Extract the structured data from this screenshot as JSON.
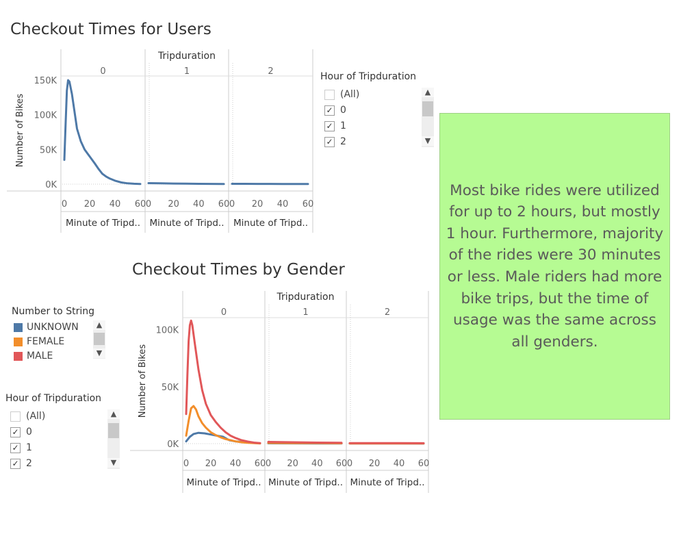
{
  "top_chart": {
    "title": "Checkout Times for Users",
    "column_header": "Tripduration",
    "panels": [
      "0",
      "1",
      "2"
    ],
    "ylabel": "Number of Bikes",
    "yticks": [
      "150K",
      "100K",
      "50K",
      "0K"
    ],
    "xticks": [
      "0",
      "20",
      "40",
      "60"
    ],
    "xlabel": "Minute of Tripd.."
  },
  "top_filter": {
    "title": "Hour of Tripduration",
    "items": [
      {
        "label": "(All)",
        "checked": false
      },
      {
        "label": "0",
        "checked": true
      },
      {
        "label": "1",
        "checked": true
      },
      {
        "label": "2",
        "checked": true
      }
    ]
  },
  "bottom_chart": {
    "title": "Checkout Times by Gender",
    "column_header": "Tripduration",
    "panels": [
      "0",
      "1",
      "2"
    ],
    "ylabel": "Number of Bikes",
    "yticks": [
      "100K",
      "50K",
      "0K"
    ],
    "xticks": [
      "0",
      "20",
      "40",
      "60"
    ],
    "xlabel": "Minute of Tripd.."
  },
  "gender_legend": {
    "title": "Number to String",
    "items": [
      {
        "label": "UNKNOWN",
        "color": "#4e79a7"
      },
      {
        "label": "FEMALE",
        "color": "#f28e2b"
      },
      {
        "label": "MALE",
        "color": "#e15759"
      }
    ]
  },
  "bottom_filter": {
    "title": "Hour of Tripduration",
    "items": [
      {
        "label": "(All)",
        "checked": false
      },
      {
        "label": "0",
        "checked": true
      },
      {
        "label": "1",
        "checked": true
      },
      {
        "label": "2",
        "checked": true
      }
    ]
  },
  "annotation": {
    "text": "Most bike rides were utilized for up to 2 hours, but mostly 1 hour. Furthermore, majority of the rides were 30 minutes or less. Male riders had more bike trips, but the time of usage was the same across all genders."
  },
  "chart_data": [
    {
      "type": "line",
      "title": "Checkout Times for Users",
      "facet": "Tripduration",
      "xlabel": "Minute of Tripd..",
      "ylabel": "Number of Bikes",
      "xlim": [
        0,
        60
      ],
      "ylim": [
        0,
        155000
      ],
      "grid": false,
      "panels": [
        {
          "name": "0",
          "series": [
            {
              "color": "#4e79a7",
              "x": [
                0,
                1,
                2,
                3,
                4,
                6,
                8,
                10,
                13,
                16,
                20,
                24,
                27,
                30,
                33,
                36,
                40,
                45,
                50,
                55,
                60
              ],
              "y": [
                35000,
                85000,
                135000,
                150000,
                148000,
                130000,
                105000,
                80000,
                62000,
                50000,
                40000,
                30000,
                22000,
                15000,
                11000,
                8000,
                5000,
                2500,
                1200,
                600,
                300
              ]
            }
          ]
        },
        {
          "name": "1",
          "series": [
            {
              "color": "#4e79a7",
              "x": [
                0,
                10,
                20,
                30,
                40,
                50,
                60
              ],
              "y": [
                1500,
                1200,
                900,
                700,
                500,
                400,
                300
              ]
            }
          ]
        },
        {
          "name": "2",
          "series": [
            {
              "color": "#4e79a7",
              "x": [
                0,
                10,
                20,
                30,
                40,
                50,
                60
              ],
              "y": [
                500,
                450,
                400,
                350,
                300,
                250,
                200
              ]
            }
          ]
        }
      ]
    },
    {
      "type": "line",
      "title": "Checkout Times by Gender",
      "facet": "Tripduration",
      "xlabel": "Minute of Tripd..",
      "ylabel": "Number of Bikes",
      "xlim": [
        0,
        60
      ],
      "ylim": [
        0,
        110000
      ],
      "grid": false,
      "legend": "left",
      "panels": [
        {
          "name": "0",
          "series": [
            {
              "name": "UNKNOWN",
              "color": "#4e79a7",
              "x": [
                0,
                3,
                6,
                10,
                15,
                20,
                25,
                30,
                35,
                40,
                45,
                50,
                55,
                60
              ],
              "y": [
                2000,
                6000,
                8500,
                9500,
                9000,
                8000,
                7000,
                6000,
                3000,
                2000,
                1500,
                1000,
                600,
                300
              ]
            },
            {
              "name": "FEMALE",
              "color": "#f28e2b",
              "x": [
                0,
                2,
                4,
                6,
                8,
                10,
                13,
                16,
                20,
                24,
                28,
                32,
                36,
                40,
                45,
                50,
                55,
                60
              ],
              "y": [
                7000,
                20000,
                31000,
                33000,
                30000,
                24000,
                18000,
                14000,
                10000,
                7500,
                5500,
                4000,
                3000,
                2000,
                1200,
                700,
                400,
                200
              ]
            },
            {
              "name": "MALE",
              "color": "#e15759",
              "x": [
                0,
                1,
                2,
                3,
                4,
                5,
                7,
                10,
                13,
                16,
                20,
                24,
                28,
                32,
                36,
                40,
                45,
                50,
                55,
                60
              ],
              "y": [
                26000,
                60000,
                90000,
                104000,
                108000,
                104000,
                88000,
                65000,
                47000,
                35000,
                25000,
                19000,
                14000,
                10000,
                7000,
                5000,
                3000,
                1800,
                900,
                400
              ]
            }
          ]
        },
        {
          "name": "1",
          "series": [
            {
              "name": "UNKNOWN",
              "color": "#4e79a7",
              "x": [
                0,
                20,
                40,
                60
              ],
              "y": [
                300,
                250,
                200,
                150
              ]
            },
            {
              "name": "FEMALE",
              "color": "#f28e2b",
              "x": [
                0,
                20,
                40,
                60
              ],
              "y": [
                600,
                500,
                400,
                300
              ]
            },
            {
              "name": "MALE",
              "color": "#e15759",
              "x": [
                0,
                20,
                40,
                60
              ],
              "y": [
                1500,
                1200,
                900,
                700
              ]
            }
          ]
        },
        {
          "name": "2",
          "series": [
            {
              "name": "UNKNOWN",
              "color": "#4e79a7",
              "x": [
                0,
                20,
                40,
                60
              ],
              "y": [
                150,
                120,
                100,
                80
              ]
            },
            {
              "name": "FEMALE",
              "color": "#f28e2b",
              "x": [
                0,
                20,
                40,
                60
              ],
              "y": [
                200,
                180,
                150,
                120
              ]
            },
            {
              "name": "MALE",
              "color": "#e15759",
              "x": [
                0,
                20,
                40,
                60
              ],
              "y": [
                500,
                450,
                400,
                350
              ]
            }
          ]
        }
      ]
    }
  ]
}
